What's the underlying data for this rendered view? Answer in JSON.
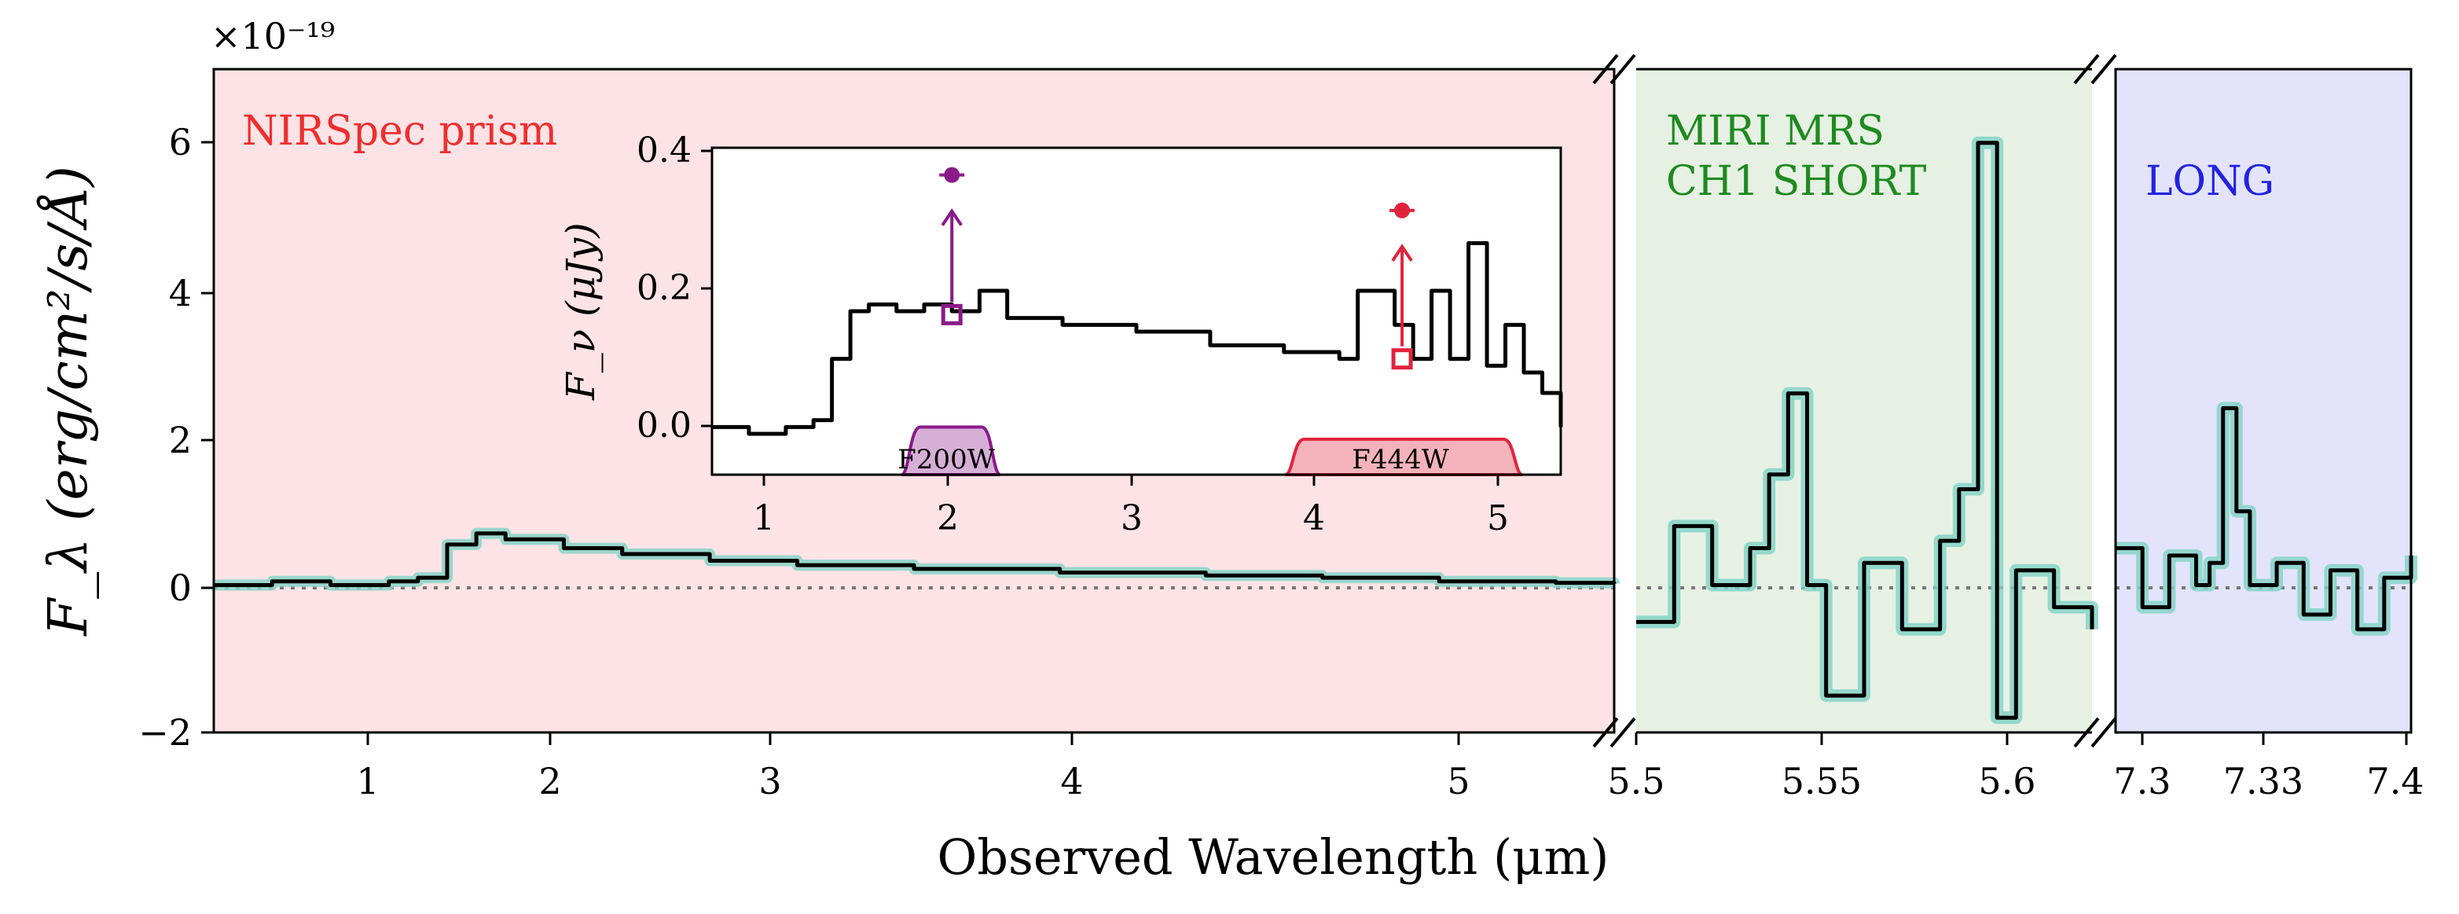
{
  "chart_data": {
    "type": "line",
    "xlabel": "Observed Wavelength (μm)",
    "ylabel": "F_λ (erg/cm²/s/Å)",
    "y_multiplier": "×10⁻¹⁹",
    "ylim": [
      -2,
      7
    ],
    "yticks": [
      "−2",
      "0",
      "2",
      "4",
      "6"
    ],
    "colors": {
      "prism_bg": "#fde3e6",
      "short_bg": "#e6f1e4",
      "long_bg": "#e3e4fb",
      "error_band": "#80d2c6",
      "spectrum": "#000000",
      "prism_label": "#ee2f2f",
      "short_label": "#1f8a1f",
      "long_label": "#2323e0",
      "f200w": "#8a1a8a",
      "f444w": "#e0243c"
    },
    "panels": [
      {
        "name": "NIRSpec prism",
        "label": "NIRSpec prism",
        "xlim": [
          0.6,
          5.4
        ],
        "xticks": [
          "1",
          "2",
          "3",
          "4",
          "5"
        ],
        "series": {
          "x": [
            0.6,
            0.8,
            1.0,
            1.2,
            1.3,
            1.4,
            1.5,
            1.6,
            1.8,
            2.0,
            2.3,
            2.6,
            3.0,
            3.5,
            4.0,
            4.4,
            4.8,
            5.2,
            5.4
          ],
          "y": [
            0.0,
            0.05,
            0.0,
            0.05,
            0.1,
            0.55,
            0.7,
            0.62,
            0.5,
            0.42,
            0.33,
            0.27,
            0.22,
            0.17,
            0.13,
            0.1,
            0.05,
            0.03,
            0.02
          ]
        }
      },
      {
        "name": "MIRI MRS CH1 SHORT",
        "label_lines": [
          "MIRI MRS",
          "CH1 SHORT"
        ],
        "xlim": [
          5.5,
          5.62
        ],
        "xticks": [
          "5.5",
          "5.55",
          "5.6"
        ],
        "series": {
          "x": [
            5.5,
            5.51,
            5.52,
            5.53,
            5.535,
            5.54,
            5.545,
            5.55,
            5.56,
            5.57,
            5.58,
            5.585,
            5.59,
            5.595,
            5.6,
            5.61,
            5.62
          ],
          "y": [
            -0.5,
            0.8,
            0.0,
            0.5,
            1.5,
            2.6,
            0.0,
            -1.5,
            0.3,
            -0.6,
            0.6,
            1.3,
            6.0,
            -1.8,
            0.2,
            -0.3,
            -0.6
          ]
        }
      },
      {
        "name": "LONG",
        "label": "LONG",
        "xlim": [
          7.29,
          7.4
        ],
        "xticks": [
          "7.3",
          "7.33",
          "7.4"
        ],
        "series": {
          "x": [
            7.29,
            7.3,
            7.31,
            7.32,
            7.325,
            7.33,
            7.335,
            7.34,
            7.35,
            7.36,
            7.37,
            7.38,
            7.39,
            7.4
          ],
          "y": [
            0.5,
            -0.3,
            0.4,
            0.0,
            0.3,
            2.4,
            1.0,
            0.0,
            0.3,
            -0.4,
            0.2,
            -0.6,
            0.1,
            0.4
          ]
        }
      }
    ],
    "inset": {
      "ylabel": "F_ν (μJy)",
      "xlim": [
        0.7,
        5.3
      ],
      "ylim": [
        -0.07,
        0.41
      ],
      "xticks": [
        "1",
        "2",
        "3",
        "4",
        "5"
      ],
      "yticks": [
        "0.0",
        "0.2",
        "0.4"
      ],
      "series": {
        "x": [
          0.7,
          0.9,
          1.1,
          1.25,
          1.35,
          1.45,
          1.55,
          1.7,
          1.85,
          2.0,
          2.15,
          2.3,
          2.6,
          3.0,
          3.4,
          3.8,
          4.1,
          4.2,
          4.4,
          4.5,
          4.6,
          4.7,
          4.8,
          4.9,
          5.0,
          5.1,
          5.2,
          5.3
        ],
        "y": [
          0.0,
          -0.01,
          0.0,
          0.01,
          0.1,
          0.17,
          0.18,
          0.17,
          0.18,
          0.17,
          0.2,
          0.16,
          0.15,
          0.14,
          0.12,
          0.11,
          0.1,
          0.2,
          0.15,
          0.1,
          0.2,
          0.1,
          0.27,
          0.09,
          0.15,
          0.08,
          0.05,
          0.0
        ]
      },
      "photometry": [
        {
          "filter": "F200W",
          "x": 2.0,
          "measured": 0.165,
          "corrected": 0.37
        },
        {
          "filter": "F444W",
          "x": 4.44,
          "measured": 0.1,
          "corrected": 0.318
        }
      ],
      "filters": [
        {
          "name": "F200W",
          "label": "F200W",
          "range": [
            1.77,
            2.22
          ]
        },
        {
          "name": "F444W",
          "label": "F444W",
          "range": [
            3.85,
            5.05
          ]
        }
      ]
    }
  }
}
